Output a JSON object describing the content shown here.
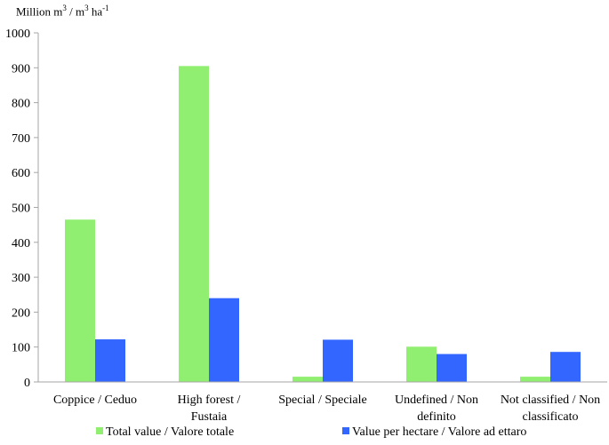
{
  "chart_data": {
    "type": "bar",
    "unit_label": {
      "prefix": "Million m",
      "sup1": "3",
      "middle": " / m",
      "sup2": "3",
      "suffix": " ha",
      "sup3": "-1"
    },
    "categories": [
      [
        "Coppice / Ceduo"
      ],
      [
        "High forest /",
        "Fustaia"
      ],
      [
        "Special / Speciale"
      ],
      [
        "Undefined / Non",
        "definito"
      ],
      [
        "Not classified / Non",
        "classificato"
      ]
    ],
    "series": [
      {
        "name": "Total value / Valore totale",
        "color": "#90EE70",
        "values": [
          465,
          905,
          15,
          101,
          15
        ]
      },
      {
        "name": "Value per hectare / Valore ad ettaro",
        "color": "#3366FF",
        "values": [
          122,
          240,
          121,
          80,
          86
        ]
      }
    ],
    "ylim": [
      0,
      1000
    ],
    "yticks": [
      0,
      100,
      200,
      300,
      400,
      500,
      600,
      700,
      800,
      900,
      1000
    ],
    "grid": false,
    "legend_position": "bottom"
  }
}
